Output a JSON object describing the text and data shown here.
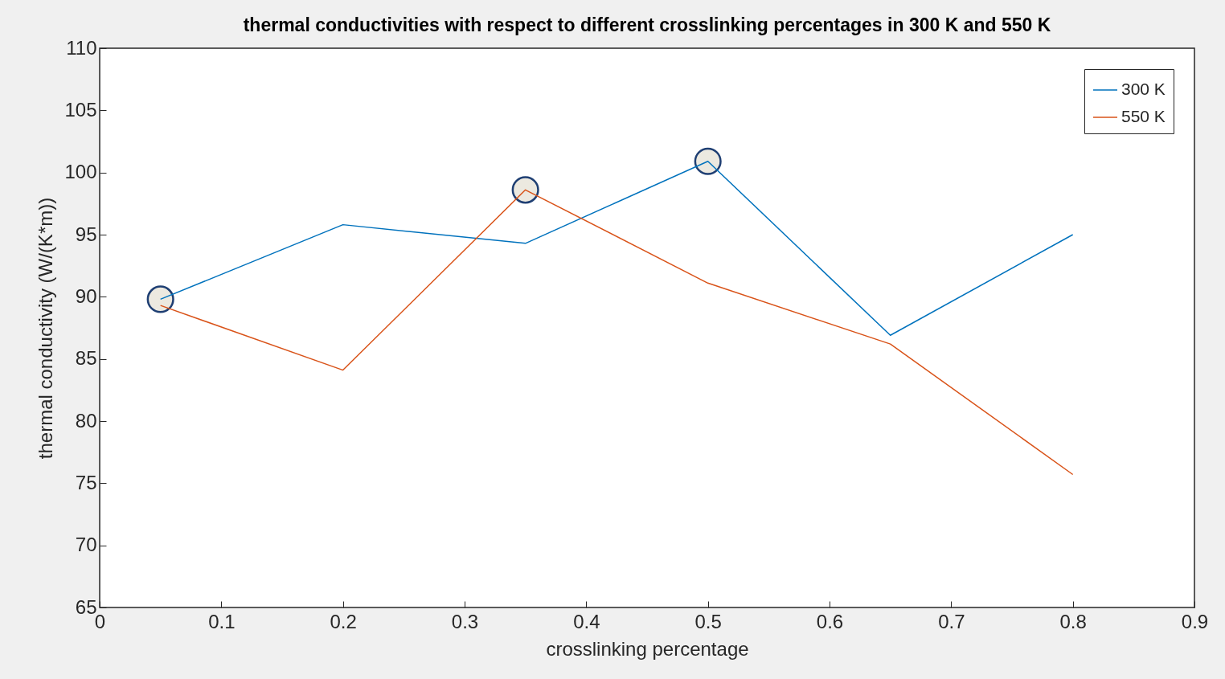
{
  "chart_data": {
    "type": "line",
    "title": "thermal conductivities with respect to different crosslinking percentages in 300 K and 550 K",
    "xlabel": "crosslinking percentage",
    "ylabel": "thermal conductivity (W/(K*m))",
    "x": [
      0.05,
      0.2,
      0.35,
      0.5,
      0.65,
      0.8
    ],
    "series": [
      {
        "name": "300 K",
        "color": "#0072bd",
        "values": [
          89.8,
          95.8,
          94.3,
          100.9,
          86.9,
          95.0
        ]
      },
      {
        "name": "550 K",
        "color": "#d95319",
        "values": [
          89.3,
          84.1,
          98.6,
          91.1,
          86.2,
          75.7
        ]
      },
      {
        "type": "scatter",
        "marker": "circle",
        "color": "#ece9e0",
        "x": [
          0.05,
          0.35,
          0.5
        ],
        "values": [
          89.8,
          98.6,
          100.9
        ]
      }
    ],
    "xlim": [
      0,
      0.9
    ],
    "xticks": [
      0,
      0.1,
      0.2,
      0.3,
      0.4,
      0.5,
      0.6,
      0.7,
      0.8,
      0.9
    ],
    "ylim": [
      65,
      110
    ],
    "yticks": [
      65,
      70,
      75,
      80,
      85,
      90,
      95,
      100,
      105,
      110
    ],
    "grid": false,
    "legend": "top right",
    "line_style": "solid"
  }
}
